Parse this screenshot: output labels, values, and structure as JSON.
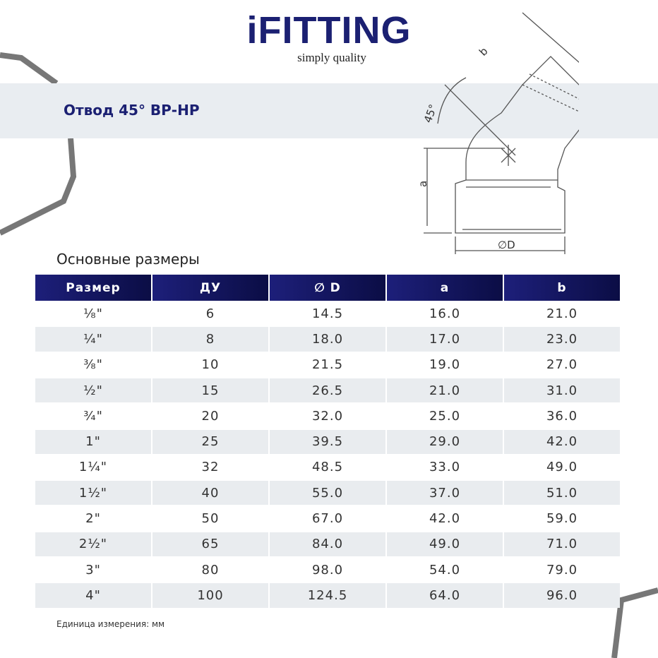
{
  "header": {
    "logo": "iFITTING",
    "tagline": "simply quality"
  },
  "title": "Отвод 45° ВР-НР",
  "diagram": {
    "labels": [
      "b",
      "45°",
      "a",
      "∅D"
    ]
  },
  "section_title": "Основные размеры",
  "table": {
    "columns": [
      "Размер",
      "ДУ",
      "∅ D",
      "a",
      "b"
    ],
    "rows": [
      [
        "⅛\"",
        "6",
        "14.5",
        "16.0",
        "21.0"
      ],
      [
        "¼\"",
        "8",
        "18.0",
        "17.0",
        "23.0"
      ],
      [
        "⅜\"",
        "10",
        "21.5",
        "19.0",
        "27.0"
      ],
      [
        "½\"",
        "15",
        "26.5",
        "21.0",
        "31.0"
      ],
      [
        "¾\"",
        "20",
        "32.0",
        "25.0",
        "36.0"
      ],
      [
        "1\"",
        "25",
        "39.5",
        "29.0",
        "42.0"
      ],
      [
        "1¼\"",
        "32",
        "48.5",
        "33.0",
        "49.0"
      ],
      [
        "1½\"",
        "40",
        "55.0",
        "37.0",
        "51.0"
      ],
      [
        "2\"",
        "50",
        "67.0",
        "42.0",
        "59.0"
      ],
      [
        "2½\"",
        "65",
        "84.0",
        "49.0",
        "71.0"
      ],
      [
        "3\"",
        "80",
        "98.0",
        "54.0",
        "79.0"
      ],
      [
        "4\"",
        "100",
        "124.5",
        "64.0",
        "96.0"
      ]
    ]
  },
  "footnote": "Единица измерения: мм"
}
